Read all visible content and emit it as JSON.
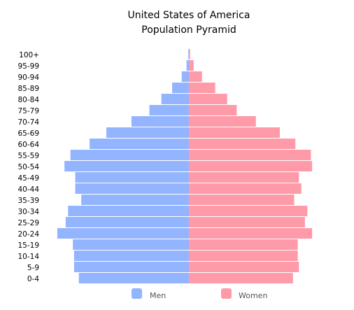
{
  "chart_data": {
    "type": "bar",
    "title": "United States of America",
    "subtitle": "Population Pyramid",
    "categories": [
      "100+",
      "95-99",
      "90-94",
      "85-89",
      "80-84",
      "75-79",
      "70-74",
      "65-69",
      "60-64",
      "55-59",
      "50-54",
      "45-49",
      "40-44",
      "35-39",
      "30-34",
      "25-29",
      "20-24",
      "15-19",
      "10-14",
      "5-9",
      "0-4"
    ],
    "series": [
      {
        "name": "Men",
        "color": "#93b4ff",
        "values": [
          0.05,
          0.2,
          0.6,
          1.4,
          2.3,
          3.3,
          4.8,
          6.9,
          8.3,
          9.9,
          10.4,
          9.5,
          9.5,
          9.0,
          10.1,
          10.3,
          11.0,
          9.7,
          9.6,
          9.6,
          9.2
        ]
      },
      {
        "name": "Women",
        "color": "#ff9aa8",
        "values": [
          0.1,
          0.4,
          1.1,
          2.2,
          3.2,
          4.0,
          5.6,
          7.6,
          8.9,
          10.2,
          10.3,
          9.2,
          9.4,
          8.8,
          9.9,
          9.7,
          10.3,
          9.1,
          9.1,
          9.2,
          8.7
        ]
      }
    ],
    "legend_position": "bottom",
    "grid": false
  }
}
